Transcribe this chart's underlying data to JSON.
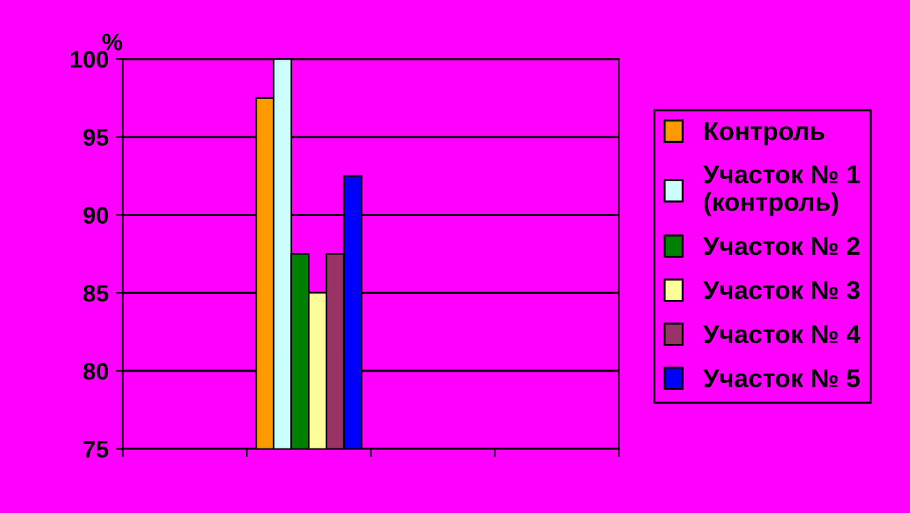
{
  "chart_data": {
    "type": "bar",
    "ylabel": "%",
    "categories": [
      null,
      null,
      null,
      null
    ],
    "series": [
      {
        "name": "Контроль",
        "color": "#ff9900",
        "values": [
          null,
          97.5,
          null,
          null
        ]
      },
      {
        "name": "Участок № 1\n(контроль)",
        "color": "#ccffff",
        "values": [
          null,
          100,
          null,
          null
        ]
      },
      {
        "name": "Участок № 2",
        "color": "#008000",
        "values": [
          null,
          87.5,
          null,
          null
        ]
      },
      {
        "name": "Участок № 3",
        "color": "#ffff99",
        "values": [
          null,
          85,
          null,
          null
        ]
      },
      {
        "name": "Участок № 4",
        "color": "#993366",
        "values": [
          null,
          87.5,
          null,
          null
        ]
      },
      {
        "name": "Участок № 5",
        "color": "#0000ff",
        "values": [
          null,
          92.5,
          null,
          null
        ]
      }
    ],
    "ylim": [
      75,
      100
    ],
    "yticks": [
      75,
      80,
      85,
      90,
      95,
      100
    ],
    "grid": "y",
    "legend": "right"
  }
}
